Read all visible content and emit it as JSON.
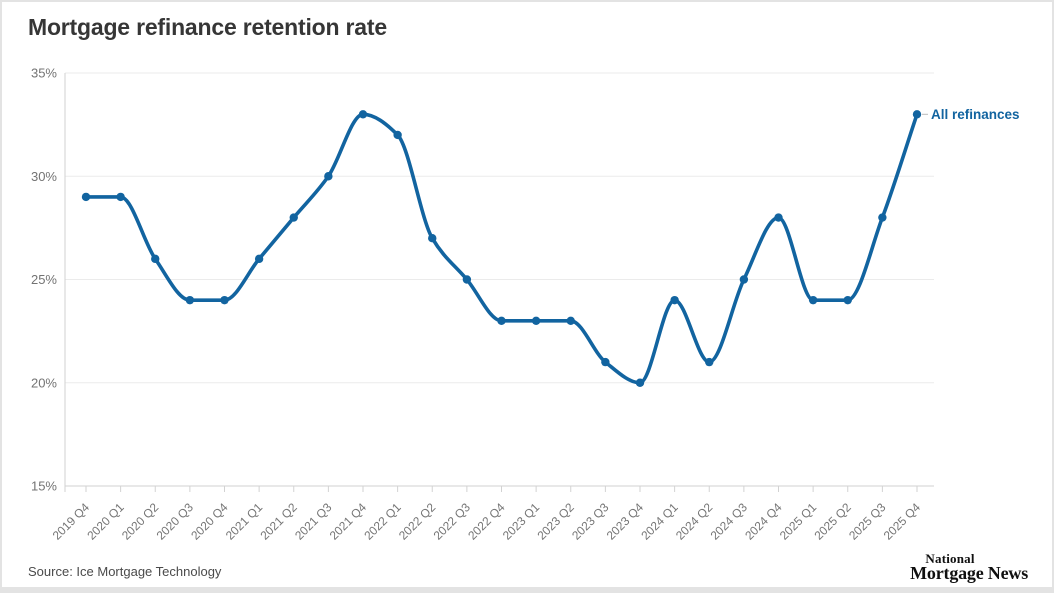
{
  "title": "Mortgage refinance retention rate",
  "source": "Source: Ice Mortgage Technology",
  "branding": {
    "line1": "National",
    "line2": "Mortgage News"
  },
  "colors": {
    "line": "#1264a0",
    "legend_text": "#1264a0",
    "title_text": "#363636",
    "axis_text": "#757575",
    "gridline": "#ebebeb",
    "axis_line": "#d2d2d2",
    "tick": "#d2d2d2",
    "legend_dash": "#bbbbbb"
  },
  "chart_data": {
    "type": "line",
    "title": "Mortgage refinance retention rate",
    "categories": [
      "2019 Q4",
      "2020 Q1",
      "2020 Q2",
      "2020 Q3",
      "2020 Q4",
      "2021 Q1",
      "2021 Q2",
      "2021 Q3",
      "2021 Q4",
      "2022 Q1",
      "2022 Q2",
      "2022 Q3",
      "2022 Q4",
      "2023 Q1",
      "2023 Q2",
      "2023 Q3",
      "2023 Q4",
      "2024 Q1",
      "2024 Q2",
      "2024 Q3",
      "2024 Q4",
      "2025 Q1",
      "2025 Q2",
      "2025 Q3",
      "2025 Q4"
    ],
    "series": [
      {
        "name": "All refinances",
        "values": [
          29,
          29,
          26,
          24,
          24,
          26,
          28,
          30,
          33,
          32,
          27,
          25,
          23,
          23,
          23,
          21,
          20,
          24,
          21,
          25,
          28,
          24,
          24,
          28,
          33
        ]
      }
    ],
    "xlabel": "",
    "ylabel": "",
    "ylim": [
      15,
      35
    ],
    "yticks": [
      15,
      20,
      25,
      30,
      35
    ],
    "ytick_suffix": "%",
    "grid": "horizontal",
    "legend_position": "end-of-line",
    "curve": "monotone",
    "markers": true
  }
}
